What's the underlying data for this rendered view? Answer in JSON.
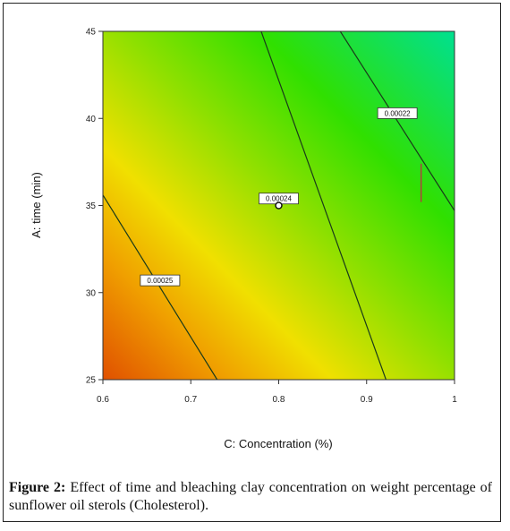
{
  "caption": {
    "label": "Figure 2:",
    "text": " Effect of time and bleaching clay concentration on weight percentage of sunflower oil sterols (Cholesterol)."
  },
  "chart_data": {
    "type": "contour",
    "title": "",
    "xlabel": "C: Concentration (%)",
    "ylabel": "A: time (min)",
    "xlim": [
      0.6,
      1.0
    ],
    "ylim": [
      25,
      45
    ],
    "x_ticks": [
      "0.6",
      "0.7",
      "0.8",
      "0.9",
      "1"
    ],
    "y_ticks": [
      "25",
      "30",
      "35",
      "40",
      "45"
    ],
    "contours": [
      {
        "label": "0.00025",
        "points": [
          [
            0.6,
            35.6
          ],
          [
            0.73,
            25
          ]
        ],
        "label_at": [
          0.665,
          30.7
        ]
      },
      {
        "label": "0.00024",
        "points": [
          [
            0.78,
            45
          ],
          [
            0.922,
            25
          ]
        ],
        "label_at": [
          0.8,
          35.4
        ]
      },
      {
        "label": "0.00022",
        "points": [
          [
            0.87,
            45
          ],
          [
            1.0,
            34.7
          ]
        ],
        "label_at": [
          0.935,
          40.3
        ]
      }
    ],
    "design_point": {
      "x": 0.8,
      "y": 35
    },
    "marker_segment": {
      "x": 0.962,
      "y": [
        35.2,
        37.4
      ]
    },
    "colors": {
      "high": "#e05000",
      "mid": "#f0e000",
      "low": "#18e000",
      "lowest": "#00e090"
    }
  }
}
